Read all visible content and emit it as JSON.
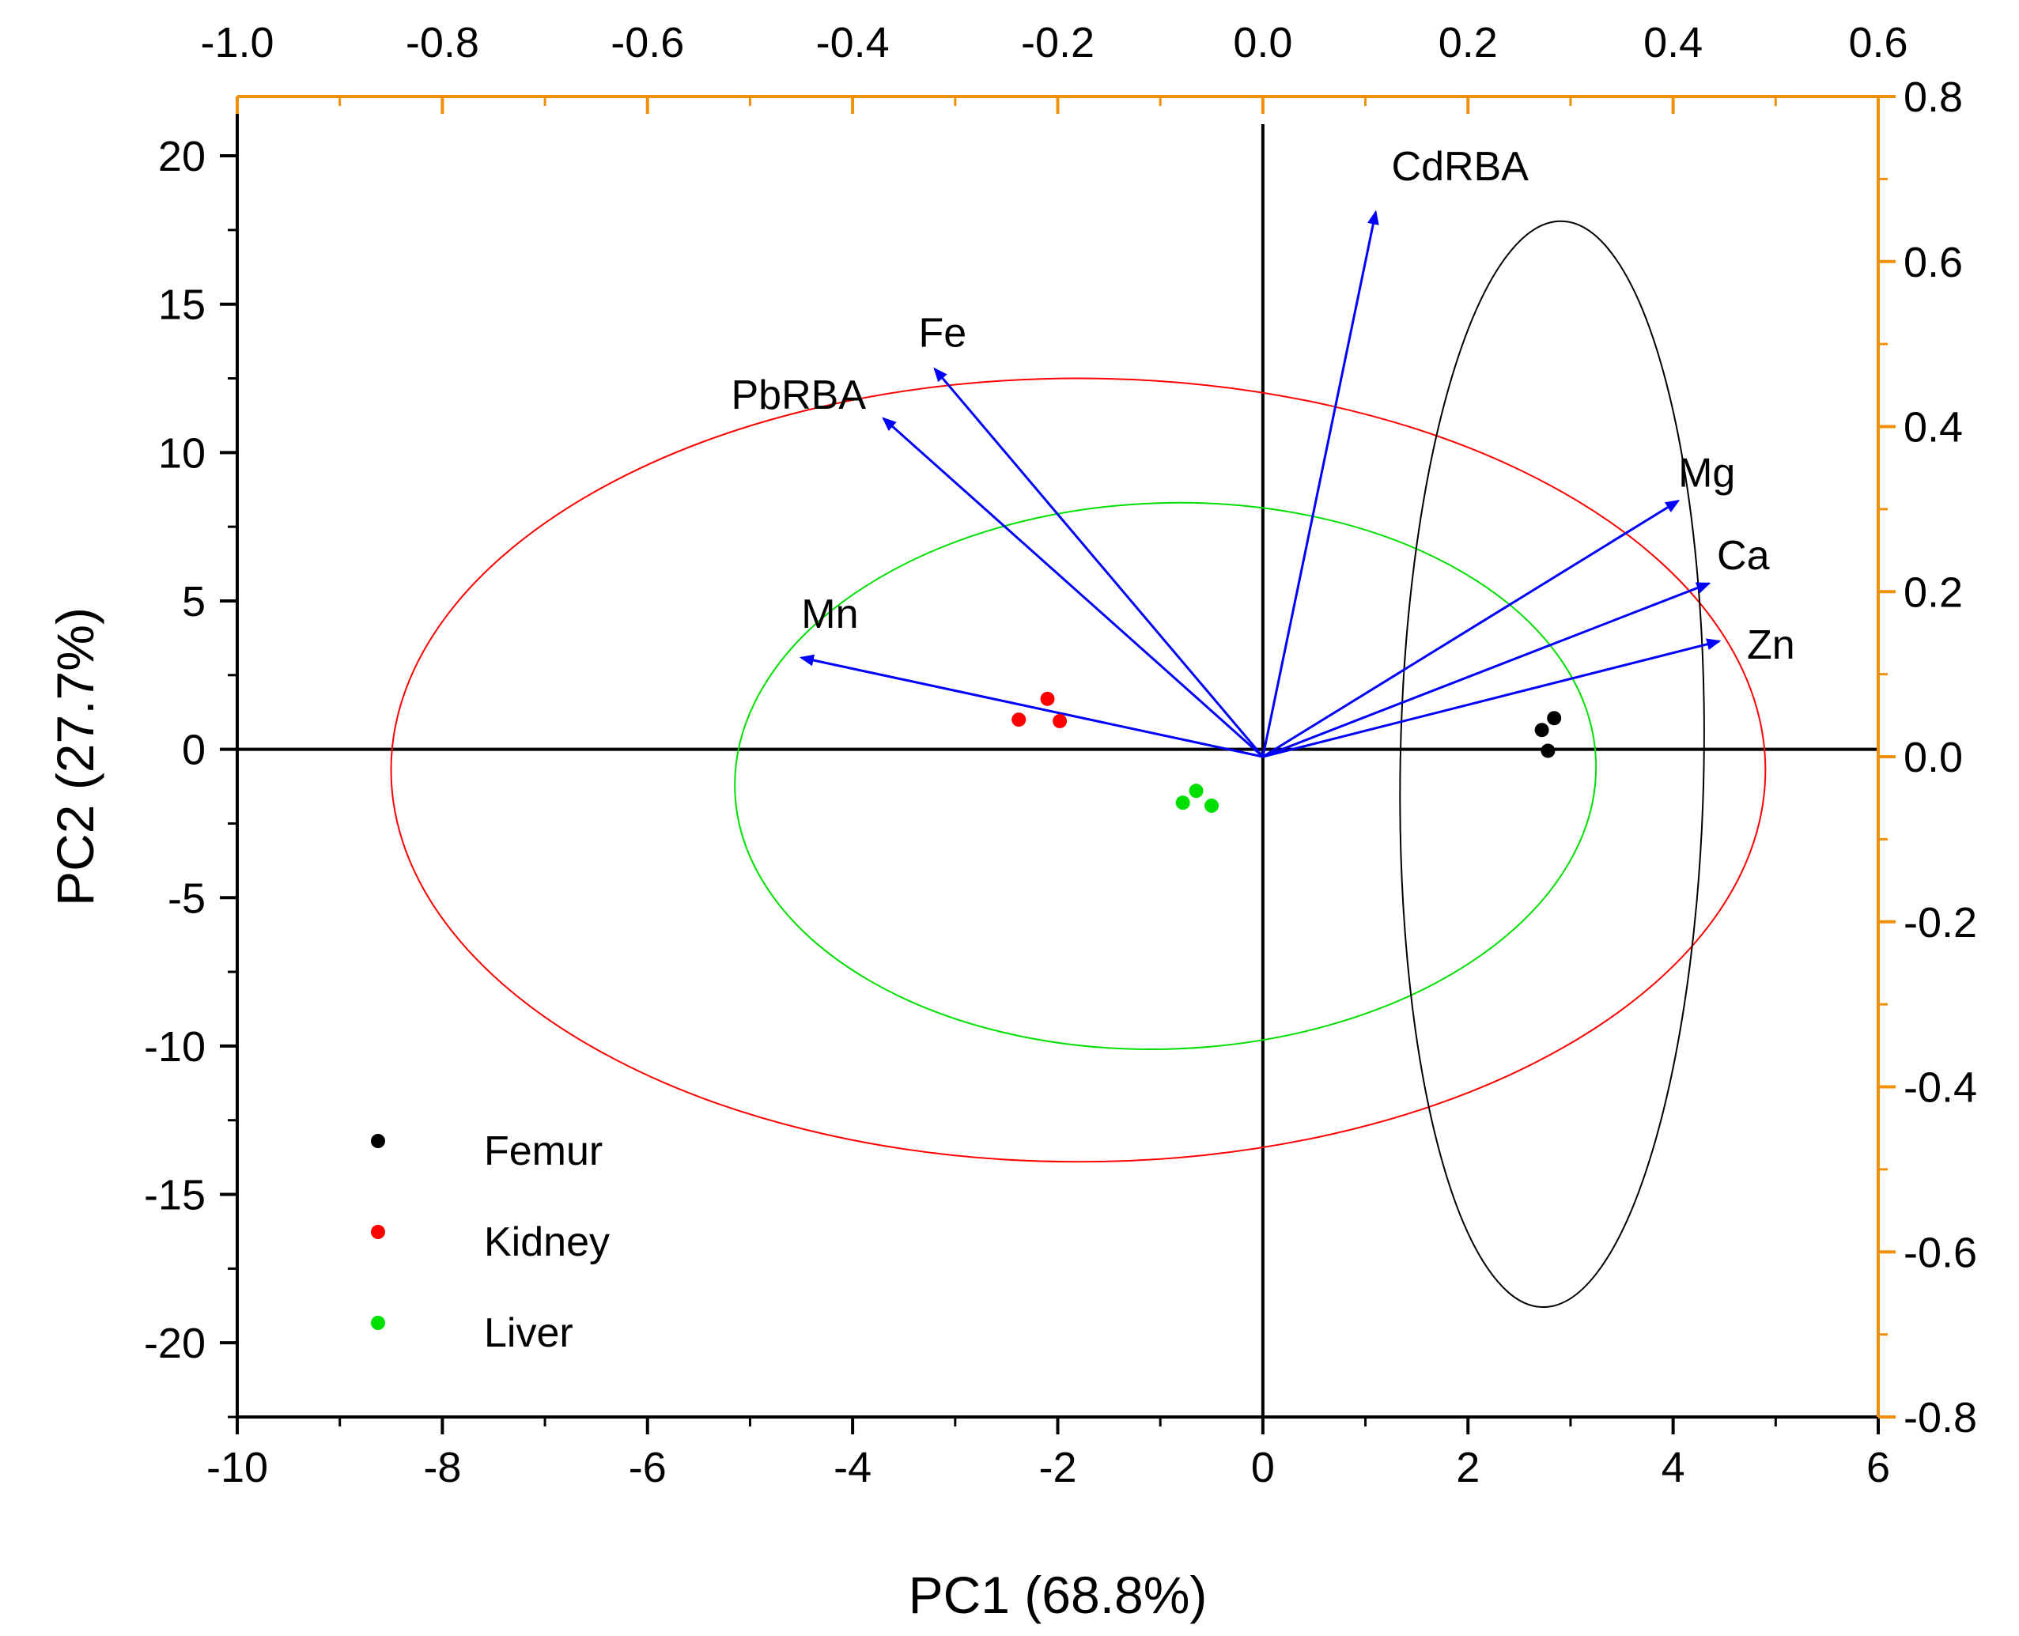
{
  "chart_data": {
    "type": "scatter",
    "subtype": "pca-biplot",
    "xlabel": "PC1 (68.8%)",
    "ylabel": "PC2 (27.7%)",
    "xlim": [
      -10,
      6
    ],
    "ylim": [
      -22.5,
      22
    ],
    "xticks": [
      -10,
      -8,
      -6,
      -4,
      -2,
      0,
      2,
      4,
      6
    ],
    "xtick_labels": [
      "-10",
      "-8",
      "-6",
      "-4",
      "-2",
      "0",
      "2",
      "4",
      "6"
    ],
    "yticks": [
      -20,
      -15,
      -10,
      -5,
      0,
      5,
      10,
      15,
      20
    ],
    "ytick_labels": [
      "-20",
      "-15",
      "-10",
      "-5",
      "0",
      "5",
      "10",
      "15",
      "20"
    ],
    "top_axis": {
      "lim": [
        -1.0,
        0.6
      ],
      "ticks": [
        -1.0,
        -0.8,
        -0.6,
        -0.4,
        -0.2,
        0.0,
        0.2,
        0.4,
        0.6
      ],
      "tick_labels": [
        "-1.0",
        "-0.8",
        "-0.6",
        "-0.4",
        "-0.2",
        "0.0",
        "0.2",
        "0.4",
        "0.6"
      ],
      "color": "#f0900a"
    },
    "right_axis": {
      "lim": [
        -0.8,
        0.8
      ],
      "ticks": [
        -0.8,
        -0.6,
        -0.4,
        -0.2,
        0.0,
        0.2,
        0.4,
        0.6,
        0.8
      ],
      "tick_labels": [
        "-0.8",
        "-0.6",
        "-0.4",
        "-0.2",
        "0.0",
        "0.2",
        "0.4",
        "0.6",
        "0.8"
      ],
      "color": "#f0900a"
    },
    "series": [
      {
        "name": "Femur",
        "color": "#000000",
        "points": [
          [
            2.72,
            0.65
          ],
          [
            2.84,
            1.05
          ],
          [
            2.78,
            -0.05
          ]
        ]
      },
      {
        "name": "Kidney",
        "color": "#ff0000",
        "points": [
          [
            -2.38,
            1.0
          ],
          [
            -2.1,
            1.7
          ],
          [
            -1.98,
            0.95
          ]
        ]
      },
      {
        "name": "Liver",
        "color": "#00e000",
        "points": [
          [
            -0.78,
            -1.8
          ],
          [
            -0.65,
            -1.4
          ],
          [
            -0.5,
            -1.9
          ]
        ]
      }
    ],
    "confidence_ellipses": [
      {
        "series": "Kidney",
        "color": "#ff0000",
        "center": [
          -1.8,
          -0.7
        ],
        "semi_axes": [
          6.7,
          13.2
        ],
        "rotation_deg": 0
      },
      {
        "series": "Liver",
        "color": "#00e000",
        "center": [
          -0.95,
          -0.9
        ],
        "semi_axes": [
          4.2,
          9.2
        ],
        "rotation_deg": -2
      },
      {
        "series": "Femur",
        "color": "#000000",
        "center": [
          2.82,
          -0.5
        ],
        "semi_axes": [
          1.48,
          18.3
        ],
        "rotation_deg": 1
      }
    ],
    "loadings": [
      {
        "name": "CdRBA",
        "x": 0.11,
        "y": 0.66
      },
      {
        "name": "Fe",
        "x": -0.32,
        "y": 0.47
      },
      {
        "name": "PbRBA",
        "x": -0.37,
        "y": 0.41
      },
      {
        "name": "Mn",
        "x": -0.45,
        "y": 0.12
      },
      {
        "name": "Mg",
        "x": 0.405,
        "y": 0.31
      },
      {
        "name": "Ca",
        "x": 0.435,
        "y": 0.21
      },
      {
        "name": "Zn",
        "x": 0.445,
        "y": 0.14
      }
    ],
    "loading_color": "#0000ff",
    "legend": {
      "placement": "bottom-left",
      "entries": [
        {
          "label": "Femur",
          "color": "#000000"
        },
        {
          "label": "Kidney",
          "color": "#ff0000"
        },
        {
          "label": "Liver",
          "color": "#00e000"
        }
      ]
    }
  }
}
